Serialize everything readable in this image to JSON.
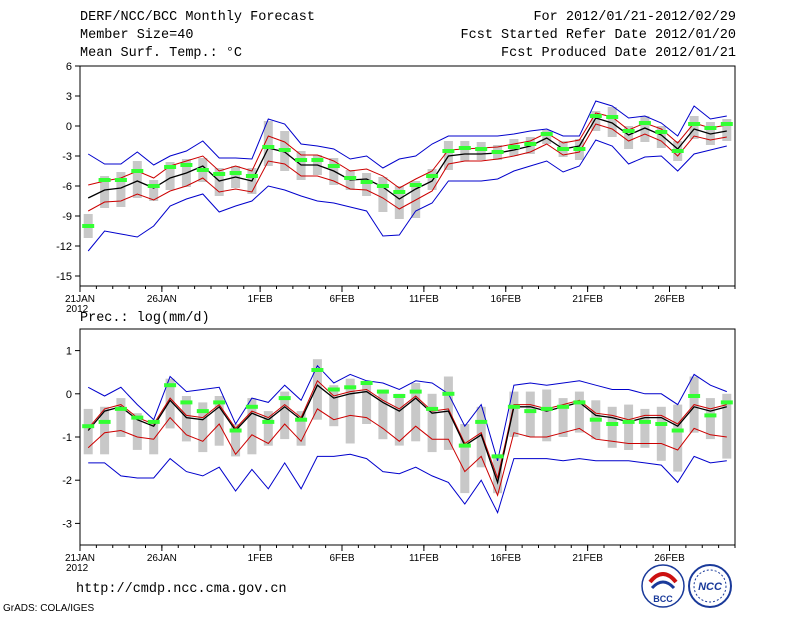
{
  "header": {
    "title": "DERF/NCC/BCC Monthly Forecast",
    "member_size": "Member Size=40",
    "variable": "Mean Surf. Temp.: °C",
    "period": "For 2012/01/21-2012/02/29",
    "started": "Fcst Started Refer Date 2012/01/20",
    "produced": "Fcst Produced Date 2012/01/21"
  },
  "footer": {
    "url": "http://cmdp.ncc.cma.gov.cn",
    "credit": "GrADS: COLA/IGES"
  },
  "logos": {
    "left_text": "BCC",
    "right_text": "NCC"
  },
  "colors": {
    "green": "#33ff33",
    "gray": "#c8c8c8",
    "blue": "#0000cc",
    "red": "#cc0000",
    "black": "#000000"
  },
  "chart_data": [
    {
      "name": "temperature",
      "type": "line",
      "title": "Mean Surf. Temp.: °C",
      "xlabel": "",
      "ylabel": "",
      "x_tick_labels": [
        "21JAN\n2012",
        "26JAN",
        "1FEB",
        "6FEB",
        "11FEB",
        "16FEB",
        "21FEB",
        "26FEB"
      ],
      "x_tick_days": [
        0,
        5,
        11,
        16,
        21,
        26,
        31,
        36
      ],
      "ylim": [
        -16,
        6
      ],
      "yticks": [
        -15,
        -12,
        -9,
        -6,
        -3,
        0,
        3,
        6
      ],
      "days": 40,
      "series": [
        {
          "name": "ensemble mean",
          "color": "black",
          "values": [
            -7.2,
            -6.4,
            -6.2,
            -5.5,
            -6.2,
            -5.2,
            -4.7,
            -4.0,
            -5.5,
            -5.1,
            -5.5,
            -2.2,
            -2.6,
            -3.9,
            -3.9,
            -4.5,
            -5.4,
            -5.3,
            -6.1,
            -7.3,
            -6.3,
            -5.5,
            -3.0,
            -2.8,
            -2.8,
            -2.7,
            -2.4,
            -2.0,
            -1.2,
            -2.3,
            -2.0,
            0.8,
            0.3,
            -0.9,
            -0.2,
            -0.9,
            -2.3,
            -0.3,
            -0.8,
            -0.5
          ]
        },
        {
          "name": "mean + spread",
          "color": "red",
          "values": [
            -5.9,
            -5.5,
            -5.2,
            -4.5,
            -5.2,
            -4.0,
            -3.5,
            -3.0,
            -4.5,
            -4.0,
            -4.5,
            -1.0,
            -1.6,
            -2.9,
            -2.9,
            -3.5,
            -4.5,
            -4.3,
            -5.0,
            -6.2,
            -5.3,
            -4.5,
            -2.4,
            -2.3,
            -2.2,
            -2.1,
            -1.8,
            -1.5,
            -0.7,
            -1.7,
            -1.4,
            1.3,
            0.9,
            -0.4,
            0.3,
            -0.3,
            -1.7,
            0.3,
            -0.2,
            0.1
          ]
        },
        {
          "name": "mean - spread",
          "color": "red",
          "values": [
            -8.5,
            -7.6,
            -7.5,
            -6.8,
            -7.4,
            -6.5,
            -6.0,
            -5.2,
            -6.6,
            -6.3,
            -6.6,
            -3.5,
            -3.8,
            -5.0,
            -5.0,
            -5.5,
            -6.3,
            -6.4,
            -7.2,
            -8.3,
            -7.4,
            -6.5,
            -3.8,
            -3.5,
            -3.5,
            -3.3,
            -3.0,
            -2.6,
            -1.8,
            -2.9,
            -2.6,
            0.2,
            -0.3,
            -1.5,
            -0.8,
            -1.5,
            -3.0,
            -1.0,
            -1.4,
            -1.1
          ]
        },
        {
          "name": "maximum",
          "color": "blue",
          "values": [
            -2.8,
            -3.8,
            -3.8,
            -2.6,
            -3.9,
            -3.0,
            -2.5,
            -1.5,
            -3.2,
            -3.2,
            -3.3,
            0.7,
            0.2,
            -1.8,
            -2.0,
            -2.3,
            -3.3,
            -3.0,
            -4.2,
            -3.3,
            -3.0,
            -1.8,
            -1.0,
            -1.0,
            -1.0,
            -1.0,
            -0.8,
            -0.5,
            -0.3,
            -1.0,
            -1.0,
            2.5,
            2.0,
            0.8,
            1.0,
            0.3,
            -1.0,
            2.0,
            0.7,
            1.0
          ]
        },
        {
          "name": "minimum",
          "color": "blue",
          "values": [
            -12.5,
            -10.5,
            -10.8,
            -11.1,
            -10.0,
            -8.0,
            -7.3,
            -6.8,
            -8.6,
            -8.0,
            -7.5,
            -6.0,
            -6.4,
            -7.0,
            -7.5,
            -7.7,
            -8.1,
            -8.5,
            -11.0,
            -10.9,
            -8.5,
            -7.7,
            -5.5,
            -5.5,
            -5.5,
            -5.3,
            -4.5,
            -4.0,
            -3.5,
            -4.6,
            -4.0,
            -1.4,
            -2.0,
            -3.8,
            -3.1,
            -3.0,
            -4.5,
            -2.8,
            -2.4,
            -2.0
          ]
        },
        {
          "name": "observed/deterministic",
          "color": "green",
          "values": [
            -10.0,
            -5.4,
            -5.4,
            -4.5,
            -6.0,
            -4.1,
            -3.9,
            -4.4,
            -4.8,
            -4.7,
            -5.0,
            -2.1,
            -2.4,
            -3.4,
            -3.4,
            -4.0,
            -5.2,
            -5.6,
            -6.0,
            -6.6,
            -5.9,
            -5.0,
            -2.5,
            -2.2,
            -2.3,
            -2.6,
            -2.1,
            -1.8,
            -0.8,
            -2.3,
            -2.3,
            1.0,
            0.9,
            -0.5,
            0.3,
            -0.6,
            -2.5,
            0.2,
            -0.2,
            0.2
          ]
        },
        {
          "name": "box upper",
          "color": "gray",
          "values": [
            -8.8,
            -5.0,
            -4.6,
            -3.5,
            -5.4,
            -3.6,
            -3.3,
            -3.2,
            -4.2,
            -4.0,
            -4.2,
            0.5,
            -0.5,
            -2.5,
            -2.9,
            -3.2,
            -4.4,
            -4.7,
            -5.1,
            -6.0,
            -5.5,
            -4.3,
            -1.5,
            -1.5,
            -1.6,
            -1.9,
            -1.3,
            -1.1,
            -0.4,
            -1.5,
            -1.3,
            1.5,
            1.9,
            0.0,
            1.0,
            0.0,
            -1.5,
            1.0,
            0.4,
            0.7
          ]
        },
        {
          "name": "box lower",
          "color": "gray",
          "values": [
            -11.2,
            -8.2,
            -8.1,
            -7.2,
            -7.5,
            -6.4,
            -6.1,
            -5.6,
            -7.0,
            -6.2,
            -6.8,
            -4.0,
            -4.5,
            -5.4,
            -4.9,
            -5.9,
            -6.4,
            -7.0,
            -8.6,
            -9.3,
            -9.2,
            -6.4,
            -4.4,
            -3.5,
            -3.4,
            -3.4,
            -3.0,
            -2.8,
            -1.8,
            -3.1,
            -3.4,
            -0.5,
            -1.1,
            -2.3,
            -1.6,
            -2.2,
            -3.5,
            -1.3,
            -1.9,
            -1.5
          ]
        }
      ]
    },
    {
      "name": "precipitation",
      "type": "line",
      "title": "Prec.: log(mm/d)",
      "xlabel": "",
      "ylabel": "",
      "x_tick_labels": [
        "21JAN\n2012",
        "26JAN",
        "1FEB",
        "6FEB",
        "11FEB",
        "16FEB",
        "21FEB",
        "26FEB"
      ],
      "x_tick_days": [
        0,
        5,
        11,
        16,
        21,
        26,
        31,
        36
      ],
      "ylim": [
        -3.5,
        1.5
      ],
      "yticks": [
        -3,
        -2,
        -1,
        0,
        1
      ],
      "days": 40,
      "series": [
        {
          "name": "ensemble mean",
          "color": "black",
          "values": [
            -0.85,
            -0.4,
            -0.3,
            -0.6,
            -0.75,
            -0.15,
            -0.55,
            -0.6,
            -0.3,
            -0.85,
            -0.45,
            -0.6,
            -0.3,
            -0.6,
            0.2,
            -0.1,
            0.0,
            0.05,
            -0.2,
            -0.4,
            -0.1,
            -0.45,
            -0.4,
            -1.2,
            -0.95,
            -2.05,
            -0.3,
            -0.3,
            -0.4,
            -0.3,
            -0.2,
            -0.5,
            -0.55,
            -0.65,
            -0.55,
            -0.55,
            -0.75,
            -0.3,
            -0.4,
            -0.3
          ]
        },
        {
          "name": "mean + spread",
          "color": "red",
          "values": [
            -0.8,
            -0.35,
            -0.25,
            -0.55,
            -0.7,
            -0.1,
            -0.5,
            -0.55,
            -0.25,
            -0.8,
            -0.4,
            -0.55,
            -0.25,
            -0.55,
            0.3,
            -0.05,
            0.05,
            0.1,
            -0.15,
            -0.35,
            -0.05,
            -0.4,
            -0.35,
            -1.15,
            -0.9,
            -1.95,
            -0.25,
            -0.25,
            -0.35,
            -0.25,
            -0.15,
            -0.45,
            -0.5,
            -0.6,
            -0.5,
            -0.5,
            -0.7,
            -0.25,
            -0.35,
            -0.25
          ]
        },
        {
          "name": "mean - spread",
          "color": "red",
          "values": [
            -1.25,
            -0.9,
            -0.85,
            -1.0,
            -1.05,
            -0.55,
            -0.95,
            -1.1,
            -0.7,
            -1.4,
            -0.95,
            -1.15,
            -0.7,
            -1.1,
            -0.35,
            -0.6,
            -0.5,
            -0.55,
            -0.8,
            -1.1,
            -0.75,
            -1.05,
            -1.05,
            -1.8,
            -1.45,
            -2.35,
            -0.9,
            -1.0,
            -1.0,
            -0.9,
            -0.8,
            -1.05,
            -1.1,
            -1.15,
            -1.15,
            -1.15,
            -1.3,
            -0.8,
            -0.95,
            -1.0
          ]
        },
        {
          "name": "maximum",
          "color": "blue",
          "values": [
            0.15,
            -0.05,
            0.15,
            -0.25,
            -0.6,
            0.4,
            0.05,
            0.1,
            0.15,
            -0.7,
            -0.1,
            -0.2,
            0.2,
            -0.15,
            0.65,
            0.25,
            0.45,
            0.3,
            0.25,
            0.1,
            0.3,
            0.25,
            0.0,
            -0.75,
            -0.25,
            -1.55,
            0.2,
            0.25,
            0.2,
            0.25,
            0.3,
            0.2,
            0.1,
            0.1,
            0.0,
            0.0,
            -0.25,
            0.45,
            0.2,
            0.05
          ]
        },
        {
          "name": "minimum",
          "color": "blue",
          "values": [
            -1.6,
            -1.6,
            -1.9,
            -1.95,
            -1.95,
            -1.5,
            -1.8,
            -1.9,
            -1.7,
            -2.25,
            -1.75,
            -2.2,
            -1.6,
            -2.2,
            -1.45,
            -1.45,
            -1.4,
            -1.5,
            -1.8,
            -1.85,
            -1.7,
            -1.9,
            -2.05,
            -2.55,
            -2.0,
            -2.75,
            -1.5,
            -1.5,
            -1.5,
            -1.55,
            -1.5,
            -1.55,
            -1.55,
            -1.55,
            -1.6,
            -1.65,
            -2.05,
            -1.45,
            -1.6,
            -1.55
          ]
        },
        {
          "name": "observed/deterministic",
          "color": "green",
          "values": [
            -0.75,
            -0.65,
            -0.35,
            -0.55,
            -0.65,
            0.2,
            -0.2,
            -0.4,
            -0.2,
            -0.85,
            -0.3,
            -0.65,
            -0.1,
            -0.6,
            0.55,
            0.1,
            0.15,
            0.25,
            0.05,
            -0.05,
            0.05,
            -0.35,
            0.0,
            -1.2,
            -0.65,
            -1.45,
            -0.3,
            -0.4,
            -0.35,
            -0.3,
            -0.2,
            -0.6,
            -0.7,
            -0.65,
            -0.65,
            -0.7,
            -0.85,
            -0.05,
            -0.5,
            -0.2
          ]
        },
        {
          "name": "box upper",
          "color": "gray",
          "values": [
            -0.35,
            -0.3,
            -0.1,
            -0.45,
            -0.65,
            0.35,
            -0.05,
            -0.2,
            -0.05,
            -0.7,
            -0.1,
            -0.4,
            0.05,
            -0.4,
            0.8,
            0.2,
            0.35,
            0.3,
            0.1,
            0.0,
            0.25,
            0.0,
            0.4,
            -0.7,
            -0.3,
            -1.4,
            0.05,
            0.05,
            0.1,
            -0.1,
            0.05,
            -0.15,
            -0.3,
            -0.25,
            -0.35,
            -0.3,
            -0.25,
            0.4,
            -0.1,
            0.0
          ]
        },
        {
          "name": "box lower",
          "color": "gray",
          "values": [
            -1.4,
            -1.4,
            -1.0,
            -1.3,
            -1.4,
            -0.8,
            -1.1,
            -1.35,
            -1.2,
            -1.45,
            -1.4,
            -1.2,
            -1.05,
            -1.2,
            -0.6,
            -0.75,
            -1.15,
            -0.7,
            -1.05,
            -1.2,
            -1.1,
            -1.35,
            -1.3,
            -2.3,
            -1.7,
            -2.3,
            -1.0,
            -1.0,
            -1.1,
            -1.0,
            -0.9,
            -1.05,
            -1.25,
            -1.3,
            -1.25,
            -1.55,
            -1.8,
            -0.9,
            -1.05,
            -1.5
          ]
        }
      ]
    }
  ]
}
